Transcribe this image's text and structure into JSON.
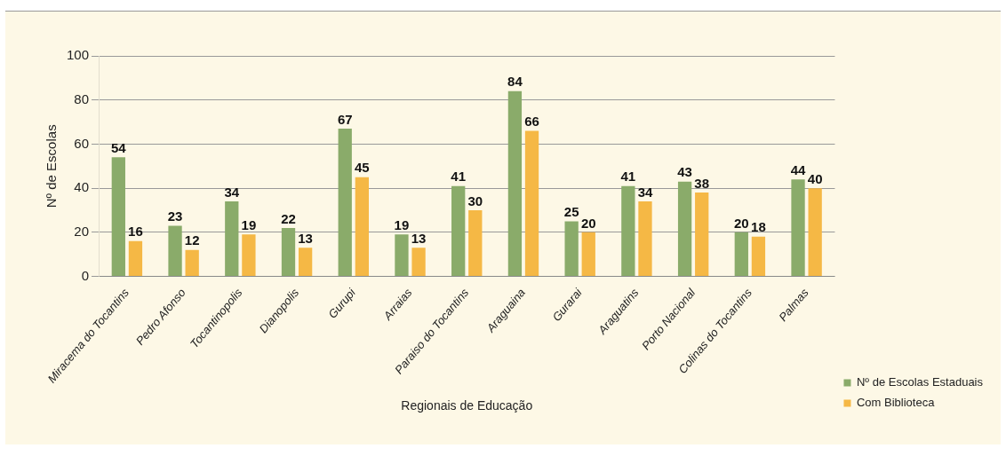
{
  "chart_data": {
    "type": "bar",
    "ylabel": "Nº de Escolas",
    "xlabel": "Regionais de Educação",
    "categories": [
      "Miracema do Tocantins",
      "Pedro Afonso",
      "Tocantinopolis",
      "Dianopolis",
      "Gurupi",
      "Arraias",
      "Paraiso do Tocantins",
      "Araguaina",
      "Gurarai",
      "Araguatins",
      "Porto Nacional",
      "Colinas do Tocantins",
      "Palmas"
    ],
    "series": [
      {
        "name": "Nº de Escolas Estaduais",
        "color": "#8aab6a",
        "values": [
          54,
          23,
          34,
          22,
          67,
          19,
          41,
          84,
          25,
          41,
          43,
          20,
          44
        ]
      },
      {
        "name": "Com Biblioteca",
        "color": "#f5b845",
        "values": [
          16,
          12,
          19,
          13,
          45,
          13,
          30,
          66,
          20,
          34,
          38,
          18,
          40
        ]
      }
    ],
    "ylim": [
      0,
      100
    ],
    "yticks": [
      0,
      20,
      40,
      60,
      80,
      100
    ],
    "grid": "y",
    "legend": "bottom right",
    "data_labels": true
  }
}
